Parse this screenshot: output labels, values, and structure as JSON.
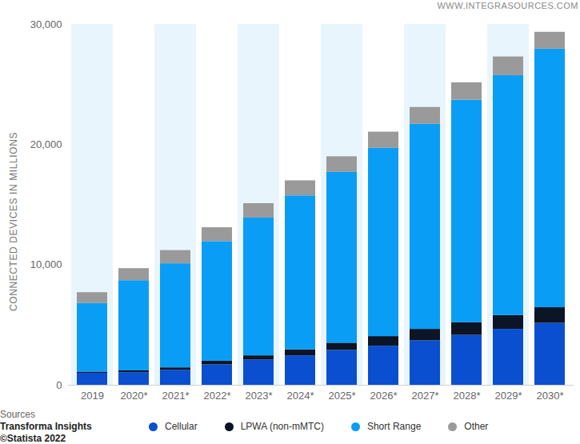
{
  "chart_data": {
    "type": "bar",
    "stacked": true,
    "grid": false,
    "legend": "bottom",
    "ylabel": "CONNECTED DEVICES IN MILLIONS",
    "annotations": {
      "watermark": "WWW.INTEGRASOURCES.COM",
      "source_heading": "Sources",
      "source": "Transforma Insights",
      "copyright": "©Statista 2022"
    },
    "categories": [
      "2019",
      "2020*",
      "2021*",
      "2022*",
      "2023*",
      "2024*",
      "2025*",
      "2026*",
      "2027*",
      "2028*",
      "2029*",
      "2030*"
    ],
    "series": [
      {
        "name": "Cellular",
        "color": "#0a4fd0",
        "values": [
          1000,
          1050,
          1250,
          1700,
          2100,
          2450,
          2900,
          3250,
          3700,
          4150,
          4650,
          5150
        ]
      },
      {
        "name": "LPWA (non-mMTC)",
        "color": "#0b1526",
        "values": [
          100,
          150,
          200,
          300,
          350,
          500,
          600,
          800,
          950,
          1050,
          1150,
          1300
        ]
      },
      {
        "name": "Short Range",
        "color": "#0a9df6",
        "values": [
          5700,
          7500,
          8650,
          9950,
          11450,
          12800,
          14200,
          15650,
          17050,
          18500,
          19950,
          21500
        ]
      },
      {
        "name": "Other",
        "color": "#9a9a9a",
        "values": [
          900,
          1000,
          1100,
          1150,
          1200,
          1250,
          1300,
          1350,
          1400,
          1450,
          1550,
          1400
        ]
      }
    ],
    "ylim": [
      0,
      30000
    ],
    "yticks": [
      0,
      {
        "value": 10000,
        "label": "10,000"
      },
      {
        "value": 20000,
        "label": "20,000"
      },
      {
        "value": 30000,
        "label": "30,000"
      }
    ]
  }
}
